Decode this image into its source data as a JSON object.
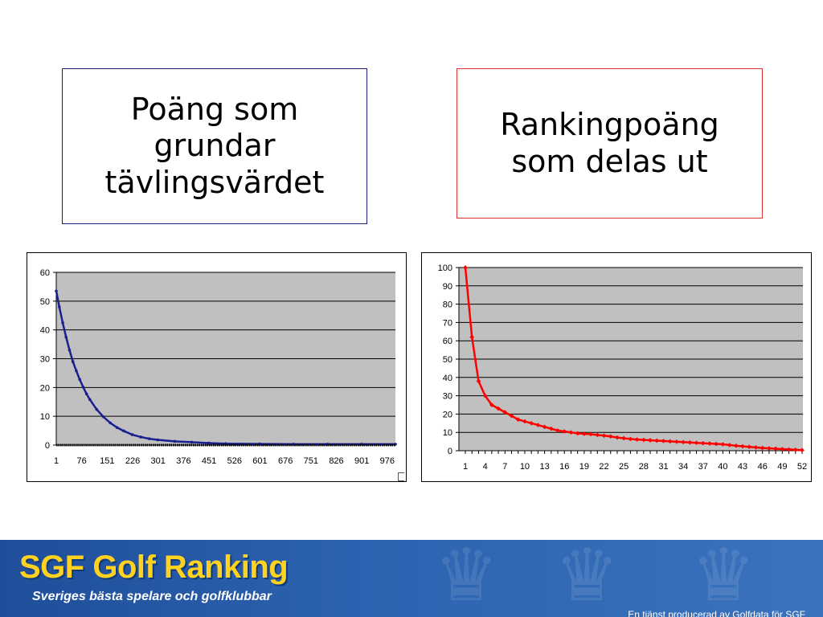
{
  "left_heading": "Poäng som\ngrundar\ntävlingsvärdet",
  "right_heading": "Rankingpoäng\nsom delas ut",
  "footer": {
    "title": "SGF Golf Ranking",
    "subtitle": "Sveriges bästa spelare och golfklubbar",
    "credit": "En tjänst producerad av Golfdata för SGF"
  },
  "colors": {
    "left_series": "#1a1f8f",
    "right_series": "#ff0000",
    "plot_area": "#c0c0c0",
    "left_box_border": "#1b1f7a",
    "right_box_border": "#e03030",
    "brand_yellow": "#ffd21f"
  },
  "chart_data": [
    {
      "type": "line",
      "ylim": [
        0,
        60
      ],
      "yticks": [
        0,
        10,
        20,
        30,
        40,
        50,
        60
      ],
      "xlim": [
        1,
        1000
      ],
      "xtick_labels": [
        "1",
        "76",
        "151",
        "226",
        "301",
        "376",
        "451",
        "526",
        "601",
        "676",
        "751",
        "826",
        "901",
        "976"
      ],
      "grid": true,
      "legend": false,
      "series": [
        {
          "x": [
            1,
            10,
            20,
            30,
            40,
            50,
            60,
            70,
            80,
            90,
            100,
            120,
            140,
            160,
            180,
            200,
            225,
            250,
            275,
            300,
            350,
            400,
            450,
            500,
            600,
            700,
            800,
            900,
            1000
          ],
          "values": [
            53.5,
            48,
            42.5,
            37.5,
            33,
            29,
            25.8,
            22.8,
            20.2,
            17.8,
            15.8,
            12.4,
            9.8,
            7.7,
            6.1,
            4.9,
            3.6,
            2.8,
            2.2,
            1.8,
            1.3,
            1.0,
            0.7,
            0.5,
            0.4,
            0.3,
            0.3,
            0.3,
            0.3
          ]
        },
        {
          "x": [
            1,
            100,
            200,
            300,
            400,
            500,
            600,
            700,
            800,
            900,
            1000
          ],
          "values": [
            0,
            0,
            0,
            0,
            0,
            0,
            0,
            0,
            0,
            0,
            0
          ]
        }
      ]
    },
    {
      "type": "line",
      "ylim": [
        0,
        100
      ],
      "yticks": [
        0,
        10,
        20,
        30,
        40,
        50,
        60,
        70,
        80,
        90,
        100
      ],
      "categories": [
        "1",
        "2",
        "3",
        "4",
        "5",
        "6",
        "7",
        "8",
        "9",
        "10",
        "11",
        "12",
        "13",
        "14",
        "15",
        "16",
        "17",
        "18",
        "19",
        "20",
        "21",
        "22",
        "23",
        "24",
        "25",
        "26",
        "27",
        "28",
        "29",
        "30",
        "31",
        "32",
        "33",
        "34",
        "35",
        "36",
        "37",
        "38",
        "39",
        "40",
        "41",
        "42",
        "43",
        "44",
        "45",
        "46",
        "47",
        "48",
        "49",
        "50",
        "51",
        "52"
      ],
      "xtick_labels": [
        "1",
        "4",
        "7",
        "10",
        "13",
        "16",
        "19",
        "22",
        "25",
        "28",
        "31",
        "34",
        "37",
        "40",
        "43",
        "46",
        "49",
        "52"
      ],
      "grid": true,
      "legend": false,
      "series": [
        {
          "values": [
            100,
            62,
            38,
            30,
            25,
            23,
            21,
            19,
            17,
            16,
            15,
            14,
            13,
            12,
            11,
            10.5,
            10,
            9.5,
            9.2,
            9,
            8.6,
            8.2,
            7.8,
            7.2,
            6.8,
            6.4,
            6.1,
            5.9,
            5.7,
            5.5,
            5.3,
            5.1,
            4.9,
            4.7,
            4.5,
            4.3,
            4.1,
            3.9,
            3.7,
            3.5,
            3.1,
            2.7,
            2.4,
            2.1,
            1.8,
            1.5,
            1.3,
            1.1,
            0.9,
            0.7,
            0.5,
            0.3
          ]
        }
      ]
    }
  ]
}
